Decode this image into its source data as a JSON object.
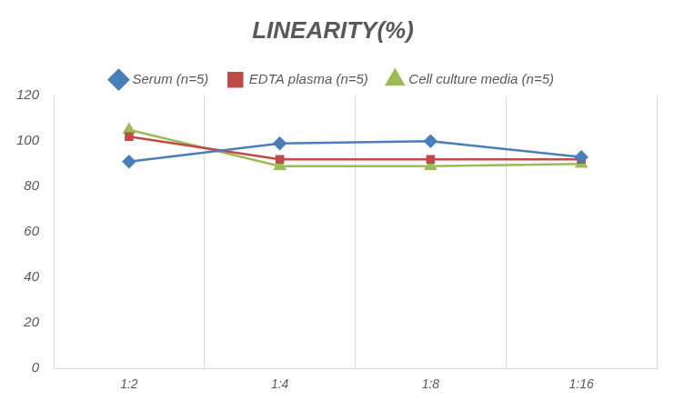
{
  "chart_data": {
    "type": "line",
    "title": "LINEARITY(%)",
    "categories": [
      "1:2",
      "1:4",
      "1:8",
      "1:16"
    ],
    "series": [
      {
        "name": "Serum (n=5)",
        "color": "#4a7ebb",
        "marker": "diamond",
        "values": [
          91,
          99,
          100,
          93
        ]
      },
      {
        "name": "EDTA plasma (n=5)",
        "color": "#be4b48",
        "marker": "square",
        "values": [
          102,
          92,
          92,
          92
        ]
      },
      {
        "name": "Cell culture media (n=5)",
        "color": "#9bbb59",
        "marker": "triangle",
        "values": [
          105,
          89,
          89,
          90
        ]
      }
    ],
    "ylim": [
      0,
      120
    ],
    "yticks": [
      0,
      20,
      40,
      60,
      80,
      100,
      120
    ],
    "grid": true,
    "legend": "top"
  }
}
